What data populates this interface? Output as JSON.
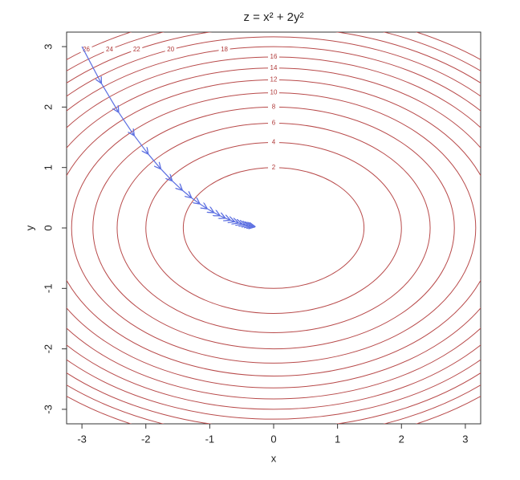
{
  "chart_data": {
    "type": "contour",
    "title": "z = x² + 2y²",
    "x_label": "x",
    "y_label": "y",
    "xlim": [
      -3.24,
      3.24
    ],
    "ylim": [
      -3.24,
      3.24
    ],
    "xticks": [
      -3,
      -2,
      -1,
      0,
      1,
      2,
      3
    ],
    "yticks": [
      -3,
      -2,
      -1,
      0,
      1,
      2,
      3
    ],
    "levels": [
      2,
      4,
      6,
      8,
      10,
      12,
      14,
      16,
      18,
      20,
      22,
      24,
      26
    ],
    "contour_color": "#b84a4a",
    "path": {
      "color": "#5b6ee1",
      "x": [
        -3,
        -2.7,
        -2.43,
        -2.187,
        -1.968,
        -1.771,
        -1.594,
        -1.435,
        -1.291,
        -1.162,
        -1.046,
        -0.941,
        -0.847,
        -0.763,
        -0.686,
        -0.618,
        -0.556,
        -0.5,
        -0.45,
        -0.405,
        -0.365,
        -0.328,
        -0.295
      ],
      "y": [
        3,
        2.4,
        1.92,
        1.536,
        1.229,
        0.983,
        0.786,
        0.629,
        0.503,
        0.403,
        0.322,
        0.258,
        0.206,
        0.165,
        0.132,
        0.106,
        0.084,
        0.068,
        0.054,
        0.043,
        0.035,
        0.028,
        0.022
      ]
    }
  }
}
